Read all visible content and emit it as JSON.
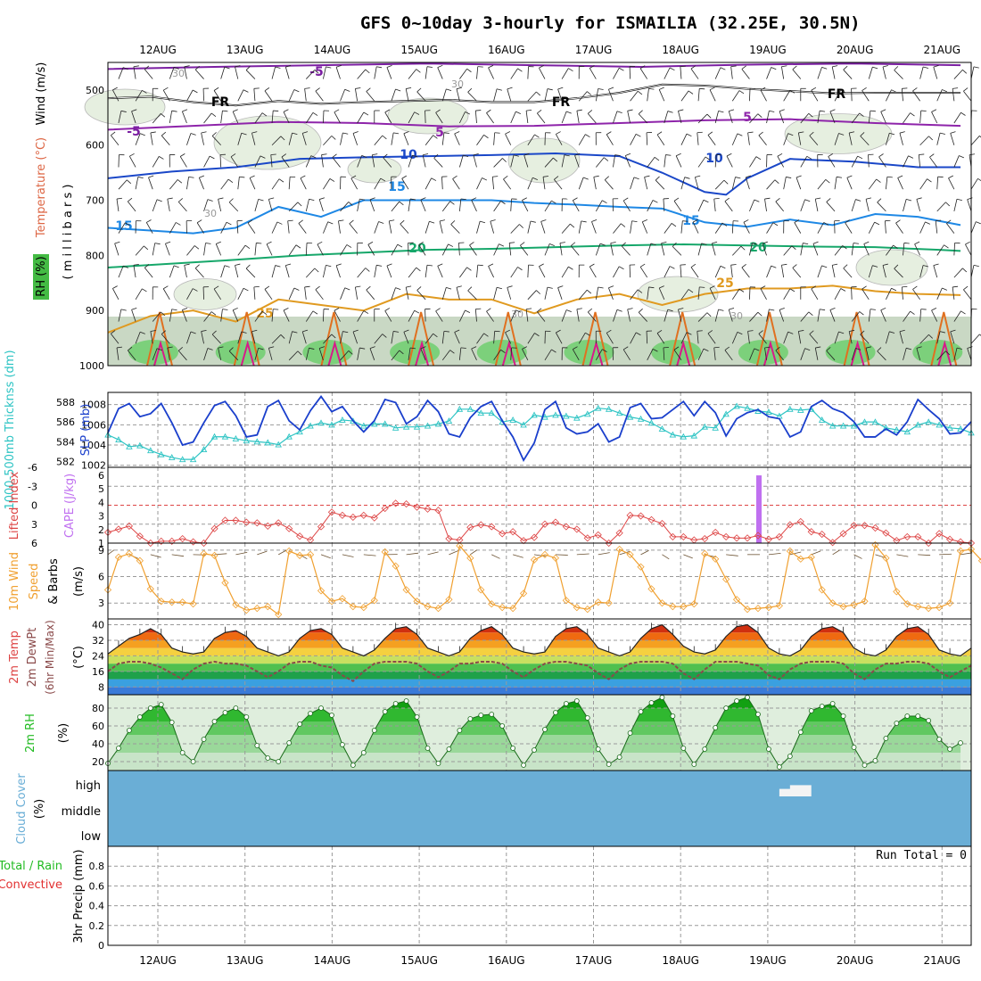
{
  "title": "GFS 0~10day 3-hourly for ISMAILIA (32.25E, 30.5N)",
  "colors": {
    "temp_lines": {
      "-5": "#7b1fa2",
      "5": "#8e24aa",
      "10": "#1a47c8",
      "15": "#1e88e5",
      "20": "#16a76a",
      "25": "#e09a20",
      "30": "#e07020",
      "35": "#d81b8a"
    },
    "rh_fill": [
      "#e6efe0",
      "#c9d8c4",
      "#a7b8a4",
      "#6fcf6f"
    ],
    "slp": "#1a3fcc",
    "thickness": "#2ec4c4",
    "lifted_index": "#dd4444",
    "cape": "#c070f0",
    "wind10m": "#f0a030",
    "cloud": "#6aaed6",
    "rh2m": "#22bb22"
  },
  "chart_data": [
    {
      "type": "heatmap",
      "name": "pressure-level cross-section",
      "ylabel_parts": [
        "RH (%)",
        "Temperature (°C)",
        "Wind (m/s)"
      ],
      "yaxis_title": "( m i l l i b a r s )",
      "x_ticks": [
        "12AUG",
        "13AUG",
        "14AUG",
        "15AUG",
        "16AUG",
        "17AUG",
        "18AUG",
        "19AUG",
        "20AUG",
        "21AUG"
      ],
      "y_ticks": [
        500,
        600,
        700,
        800,
        900,
        1000
      ],
      "ylim": [
        1000,
        450
      ],
      "isotherm_labels": [
        "-5",
        "-5",
        "5",
        "5",
        "FR",
        "FR",
        "FR",
        "10",
        "10",
        "15",
        "15",
        "15",
        "20",
        "20",
        "25",
        "25",
        "30",
        "30",
        "30",
        "30",
        "30"
      ],
      "isotherms": [
        {
          "label": "-5",
          "x": [
            0,
            10,
            20,
            30,
            40,
            50,
            60,
            70,
            80
          ],
          "y": [
            462,
            458,
            455,
            452,
            455,
            458,
            454,
            452,
            455
          ]
        },
        {
          "label": "FR",
          "x": [
            0,
            4,
            8,
            12,
            16,
            20,
            24,
            28,
            32,
            36,
            40,
            44,
            48,
            52,
            56,
            60,
            64,
            68,
            72,
            76,
            80
          ],
          "y": [
            515,
            512,
            522,
            528,
            520,
            525,
            522,
            520,
            518,
            522,
            522,
            515,
            505,
            490,
            492,
            498,
            502,
            506,
            505,
            505,
            505
          ]
        },
        {
          "label": "5",
          "x": [
            0,
            8,
            16,
            24,
            32,
            40,
            48,
            56,
            64,
            72,
            80
          ],
          "y": [
            572,
            565,
            558,
            560,
            566,
            565,
            560,
            555,
            553,
            560,
            565
          ]
        },
        {
          "label": "10",
          "x": [
            0,
            6,
            12,
            18,
            24,
            30,
            36,
            42,
            48,
            52,
            56,
            58,
            60,
            64,
            70,
            76,
            80
          ],
          "y": [
            660,
            648,
            640,
            625,
            622,
            620,
            618,
            615,
            620,
            650,
            685,
            690,
            660,
            625,
            630,
            640,
            640
          ]
        },
        {
          "label": "15",
          "x": [
            0,
            4,
            8,
            12,
            16,
            20,
            24,
            28,
            32,
            36,
            40,
            44,
            48,
            52,
            56,
            60,
            64,
            68,
            72,
            76,
            80
          ],
          "y": [
            750,
            755,
            760,
            750,
            712,
            730,
            700,
            700,
            700,
            700,
            705,
            708,
            712,
            715,
            740,
            748,
            735,
            745,
            725,
            730,
            745
          ]
        },
        {
          "label": "20",
          "x": [
            0,
            6,
            12,
            18,
            24,
            30,
            36,
            42,
            48,
            54,
            60,
            66,
            72,
            78,
            80
          ],
          "y": [
            822,
            815,
            808,
            800,
            795,
            790,
            788,
            785,
            782,
            780,
            782,
            784,
            785,
            790,
            792
          ]
        },
        {
          "label": "25",
          "x": [
            0,
            4,
            8,
            12,
            16,
            20,
            24,
            28,
            32,
            36,
            40,
            44,
            48,
            52,
            56,
            60,
            64,
            68,
            72,
            76,
            80
          ],
          "y": [
            940,
            910,
            900,
            920,
            880,
            890,
            900,
            870,
            880,
            880,
            905,
            880,
            870,
            890,
            870,
            860,
            860,
            855,
            865,
            870,
            872
          ]
        }
      ],
      "rh_30_labels": [
        "30",
        "30",
        "30",
        "30",
        "30",
        "30",
        "30",
        "30"
      ]
    },
    {
      "type": "line",
      "name": "SLP and thickness",
      "ylabel_left": "1000-500mb Thicknss (dm)",
      "ylabel_right": "SLP (mb)",
      "x_ticks": [
        "12AUG",
        "13AUG",
        "14AUG",
        "15AUG",
        "16AUG",
        "17AUG",
        "18AUG",
        "19AUG",
        "20AUG",
        "21AUG"
      ],
      "thickness_ticks": [
        582,
        584,
        586,
        588
      ],
      "slp_ticks": [
        1002,
        1004,
        1006,
        1008
      ],
      "series": [
        {
          "name": "SLP (mb)",
          "units": "mb",
          "ylim": [
            1001.8,
            1009.2
          ],
          "values": [
            1005.2,
            1007.6,
            1008.1,
            1006.8,
            1007.1,
            1008.1,
            1006.2,
            1004.0,
            1004.3,
            1006.2,
            1007.9,
            1008.3,
            1006.9,
            1004.8,
            1005.0,
            1007.8,
            1008.4,
            1006.4,
            1005.5,
            1007.4,
            1008.8,
            1007.3,
            1007.8,
            1006.4,
            1005.3,
            1006.4,
            1008.5,
            1008.2,
            1006.1,
            1006.8,
            1008.4,
            1007.3,
            1005.1,
            1004.8,
            1006.7,
            1007.8,
            1008.3,
            1006.4,
            1004.8,
            1002.5,
            1004.2,
            1007.5,
            1008.3,
            1005.7,
            1005.1,
            1005.3,
            1006.1,
            1004.3,
            1004.8,
            1007.7,
            1008.1,
            1006.6,
            1006.7,
            1007.5,
            1008.3,
            1006.9,
            1008.3,
            1007.2,
            1004.9,
            1006.6,
            1007.2,
            1007.5,
            1006.8,
            1006.6,
            1004.8,
            1005.3,
            1007.8,
            1008.4,
            1007.6,
            1007.2,
            1006.3,
            1004.8,
            1004.8,
            1005.6,
            1005.0,
            1006.3,
            1008.5,
            1007.5,
            1006.6,
            1005.1,
            1005.2,
            1006.3
          ]
        },
        {
          "name": "1000-500mb Thicknss (dm)",
          "units": "dm",
          "ylim": [
            581.4,
            589.0
          ],
          "values": [
            584.7,
            584.2,
            583.5,
            583.6,
            583.1,
            582.7,
            582.4,
            582.2,
            582.2,
            583.2,
            584.5,
            584.5,
            584.3,
            584.1,
            584.0,
            583.9,
            583.7,
            584.5,
            585.0,
            585.6,
            585.9,
            585.7,
            586.2,
            586.1,
            585.6,
            585.8,
            585.8,
            585.4,
            585.5,
            585.5,
            585.6,
            585.8,
            586.1,
            587.3,
            587.3,
            586.9,
            586.9,
            586.0,
            586.2,
            585.7,
            586.7,
            586.5,
            586.7,
            586.6,
            586.4,
            586.8,
            587.4,
            587.3,
            586.9,
            586.5,
            586.3,
            585.9,
            585.3,
            584.7,
            584.5,
            584.6,
            585.5,
            585.4,
            586.8,
            587.6,
            587.4,
            587.1,
            587.0,
            586.6,
            587.3,
            587.2,
            587.3,
            586.2,
            585.6,
            585.6,
            585.6,
            586.0,
            586.0,
            585.4,
            585.2,
            585.0,
            585.7,
            586.0,
            585.7,
            585.4,
            585.3,
            584.9
          ]
        }
      ]
    },
    {
      "type": "line",
      "name": "Lifted index and CAPE",
      "ylabel_left": "Lifted Index",
      "ylabel_right": "CAPE (J/kg)",
      "li_ticks": [
        "-6",
        "-3",
        "0",
        "3",
        "6"
      ],
      "cape_ticks": [
        "1",
        "2",
        "3",
        "4",
        "5",
        "6"
      ],
      "series": [
        {
          "name": "Lifted Index",
          "values": [
            4.3,
            3.8,
            3.3,
            4.9,
            6.0,
            5.7,
            5.7,
            5.3,
            5.8,
            6.0,
            3.7,
            2.4,
            2.4,
            2.7,
            2.8,
            3.3,
            2.8,
            3.7,
            4.9,
            5.5,
            3.4,
            1.1,
            1.6,
            1.9,
            1.6,
            2.0,
            0.5,
            -0.3,
            -0.2,
            0.3,
            0.6,
            0.8,
            5.3,
            5.5,
            3.5,
            3.1,
            3.4,
            4.5,
            4.2,
            5.6,
            5.1,
            3.0,
            2.7,
            3.4,
            3.8,
            5.2,
            4.7,
            6.0,
            4.4,
            1.6,
            1.7,
            2.3,
            2.9,
            5.0,
            5.0,
            5.5,
            5.3,
            4.3,
            5.0,
            5.2,
            5.2,
            4.8,
            5.4,
            5.0,
            3.1,
            2.6,
            4.2,
            4.6,
            5.9,
            4.5,
            3.2,
            3.2,
            3.6,
            4.4,
            5.6,
            5.0,
            5.0,
            6.0,
            4.5,
            5.4,
            5.8,
            6.0
          ]
        },
        {
          "name": "CAPE (J/kg)",
          "values": [
            0,
            0,
            0,
            0,
            0,
            0,
            0,
            0,
            0,
            0,
            0,
            0,
            0,
            0,
            0,
            0,
            0,
            0,
            0,
            0,
            0,
            0,
            0,
            0,
            0,
            0,
            0,
            0,
            0,
            0,
            0,
            0,
            0,
            0,
            0,
            0,
            0,
            0,
            0,
            0,
            0,
            0,
            0,
            0,
            0,
            0,
            0,
            0,
            0,
            0,
            0,
            0,
            0,
            0,
            0,
            0,
            0,
            0,
            0,
            0,
            0,
            6,
            0,
            0,
            0,
            0,
            0,
            0,
            0,
            0,
            0,
            0,
            0,
            0,
            0,
            0,
            0,
            0,
            0,
            0,
            0,
            0
          ]
        }
      ]
    },
    {
      "type": "line",
      "name": "10m wind",
      "ylabel": "10m Wind Speed & Barbs (m/s)",
      "y_ticks": [
        3,
        6,
        9
      ],
      "ylim": [
        1.2,
        9.8
      ],
      "values": [
        4.5,
        8.2,
        8.6,
        7.8,
        4.6,
        3.2,
        3.1,
        3.1,
        2.9,
        8.6,
        8.4,
        5.3,
        2.8,
        2.2,
        2.4,
        2.6,
        1.7,
        8.9,
        8.4,
        8.5,
        4.4,
        3.2,
        3.5,
        2.6,
        2.5,
        3.3,
        8.8,
        7.2,
        4.5,
        3.2,
        2.6,
        2.4,
        3.4,
        9.5,
        8.1,
        4.5,
        2.9,
        2.5,
        2.4,
        4.1,
        7.9,
        8.5,
        8.1,
        3.3,
        2.5,
        2.3,
        3.1,
        3.0,
        9.1,
        8.5,
        7.1,
        4.6,
        3.0,
        2.6,
        2.6,
        2.9,
        8.6,
        8.0,
        5.7,
        3.4,
        2.3,
        2.4,
        2.5,
        2.7,
        8.9,
        8.0,
        8.2,
        4.5,
        3.0,
        2.6,
        2.8,
        3.2,
        9.6,
        8.1,
        4.3,
        2.9,
        2.6,
        2.4,
        2.5,
        3.0,
        8.9,
        9.1,
        7.8,
        3.3,
        2.5,
        2.2,
        2.1,
        2.0,
        2.2,
        1.7
      ]
    },
    {
      "type": "area",
      "name": "2m temperature and dewpoint",
      "ylabel": "2m Temp 2m DewPt (6hr Min/Max) (°C)",
      "y_ticks": [
        8,
        16,
        24,
        32,
        40
      ],
      "ylim": [
        4,
        43
      ],
      "temp": [
        25,
        29,
        33,
        35,
        38,
        35,
        28,
        26,
        25,
        26,
        33,
        36,
        37,
        34,
        28,
        26,
        24,
        26,
        33,
        37,
        38,
        35,
        28,
        26,
        24,
        27,
        33,
        38,
        39,
        35,
        28,
        26,
        24,
        26,
        33,
        37,
        39,
        35,
        28,
        26,
        25,
        26,
        34,
        38,
        39,
        35,
        28,
        26,
        24,
        26,
        33,
        38,
        40,
        35,
        29,
        26,
        25,
        27,
        34,
        39,
        40,
        36,
        28,
        25,
        24,
        27,
        34,
        38,
        39,
        36,
        28,
        25,
        24,
        27,
        34,
        38,
        39,
        35,
        27,
        25,
        24,
        28
      ],
      "dewpt": [
        16,
        20,
        21,
        21,
        20,
        18,
        15,
        12,
        17,
        20,
        21,
        20,
        20,
        19,
        16,
        13,
        16,
        20,
        21,
        21,
        19,
        18,
        14,
        11,
        16,
        20,
        21,
        21,
        21,
        20,
        16,
        13,
        16,
        20,
        20,
        21,
        21,
        20,
        16,
        13,
        17,
        20,
        21,
        21,
        20,
        19,
        15,
        12,
        17,
        20,
        21,
        21,
        21,
        20,
        15,
        12,
        17,
        21,
        21,
        21,
        20,
        19,
        14,
        12,
        17,
        20,
        21,
        21,
        21,
        20,
        15,
        12,
        17,
        20,
        20,
        21,
        21,
        20,
        16,
        13,
        16,
        19
      ]
    },
    {
      "type": "area",
      "name": "2m RH",
      "ylabel": "2m RH (%)",
      "y_ticks": [
        20,
        40,
        60,
        80
      ],
      "ylim": [
        10,
        95
      ],
      "values": [
        18,
        35,
        55,
        70,
        80,
        84,
        64,
        30,
        20,
        45,
        65,
        75,
        80,
        70,
        38,
        24,
        20,
        41,
        62,
        74,
        80,
        72,
        39,
        16,
        30,
        55,
        76,
        85,
        88,
        70,
        35,
        18,
        34,
        55,
        68,
        72,
        73,
        60,
        35,
        16,
        33,
        56,
        75,
        85,
        88,
        69,
        34,
        17,
        25,
        52,
        76,
        86,
        92,
        71,
        35,
        17,
        34,
        58,
        80,
        88,
        92,
        73,
        34,
        14,
        26,
        53,
        77,
        82,
        85,
        71,
        36,
        16,
        21,
        46,
        63,
        71,
        71,
        66,
        45,
        34,
        41
      ]
    },
    {
      "type": "bar",
      "name": "cloud cover",
      "ylabel": "Cloud Cover (%)",
      "levels": [
        "high",
        "middle",
        "low"
      ],
      "high_clouds": [
        {
          "from_hour": 189,
          "to_hour": 195,
          "value": 30
        },
        {
          "from_hour": 192,
          "to_hour": 198,
          "value": 45
        }
      ]
    },
    {
      "type": "bar",
      "name": "3hr precipitation",
      "ylabel_parts": [
        "Total / Rain",
        "Convective"
      ],
      "ylabel_axis": "3hr Precip (mm)",
      "y_ticks": [
        "0",
        "0.2",
        "0.4",
        "0.6",
        "0.8"
      ],
      "ylim": [
        0,
        1
      ],
      "run_total_label": "Run Total = 0",
      "values": []
    }
  ]
}
